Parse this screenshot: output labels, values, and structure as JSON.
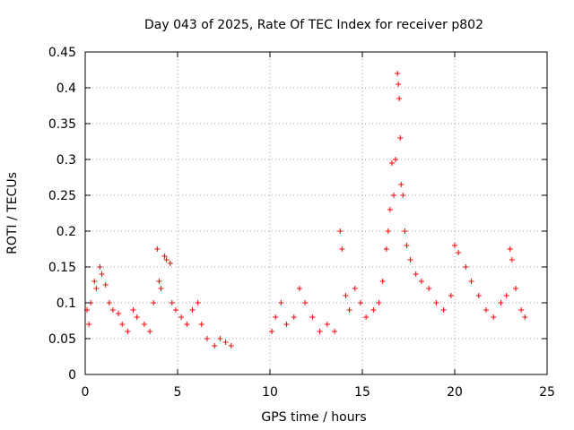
{
  "chart_data": {
    "type": "scatter",
    "title": "Day 043 of 2025, Rate Of TEC Index for receiver p802",
    "xlabel": "GPS time / hours",
    "ylabel": "ROTI / TECUs",
    "xlim": [
      0,
      25
    ],
    "ylim": [
      0,
      0.45
    ],
    "xticks": [
      0,
      5,
      10,
      15,
      20,
      25
    ],
    "xtick_labels": [
      "0",
      "5",
      "10",
      "15",
      "20",
      "25"
    ],
    "yticks": [
      0,
      0.05,
      0.1,
      0.15,
      0.2,
      0.25,
      0.3,
      0.35,
      0.4,
      0.45
    ],
    "ytick_labels": [
      "0",
      "0.05",
      "0.1",
      "0.15",
      "0.2",
      "0.25",
      "0.3",
      "0.35",
      "0.4",
      "0.45"
    ],
    "grid": true,
    "marker": "+",
    "color": "#ff0000",
    "series": [
      {
        "name": "ROTI",
        "points": [
          [
            0.1,
            0.09
          ],
          [
            0.2,
            0.07
          ],
          [
            0.3,
            0.1
          ],
          [
            0.5,
            0.13
          ],
          [
            0.6,
            0.12
          ],
          [
            0.8,
            0.15
          ],
          [
            0.9,
            0.14
          ],
          [
            1.1,
            0.125
          ],
          [
            1.3,
            0.1
          ],
          [
            1.5,
            0.09
          ],
          [
            1.8,
            0.085
          ],
          [
            2.0,
            0.07
          ],
          [
            2.3,
            0.06
          ],
          [
            2.6,
            0.09
          ],
          [
            2.8,
            0.08
          ],
          [
            3.2,
            0.07
          ],
          [
            3.5,
            0.06
          ],
          [
            3.7,
            0.1
          ],
          [
            3.9,
            0.175
          ],
          [
            4.0,
            0.13
          ],
          [
            4.1,
            0.12
          ],
          [
            4.3,
            0.165
          ],
          [
            4.4,
            0.16
          ],
          [
            4.6,
            0.155
          ],
          [
            4.7,
            0.1
          ],
          [
            4.9,
            0.09
          ],
          [
            5.2,
            0.08
          ],
          [
            5.5,
            0.07
          ],
          [
            5.8,
            0.09
          ],
          [
            6.1,
            0.1
          ],
          [
            6.3,
            0.07
          ],
          [
            6.6,
            0.05
          ],
          [
            7.0,
            0.04
          ],
          [
            7.3,
            0.05
          ],
          [
            7.6,
            0.045
          ],
          [
            7.9,
            0.04
          ],
          [
            10.1,
            0.06
          ],
          [
            10.3,
            0.08
          ],
          [
            10.6,
            0.1
          ],
          [
            10.9,
            0.07
          ],
          [
            11.3,
            0.08
          ],
          [
            11.6,
            0.12
          ],
          [
            11.9,
            0.1
          ],
          [
            12.3,
            0.08
          ],
          [
            12.7,
            0.06
          ],
          [
            13.1,
            0.07
          ],
          [
            13.5,
            0.06
          ],
          [
            13.8,
            0.2
          ],
          [
            13.9,
            0.175
          ],
          [
            14.1,
            0.11
          ],
          [
            14.3,
            0.09
          ],
          [
            14.6,
            0.12
          ],
          [
            14.9,
            0.1
          ],
          [
            15.2,
            0.08
          ],
          [
            15.6,
            0.09
          ],
          [
            15.9,
            0.1
          ],
          [
            16.1,
            0.13
          ],
          [
            16.3,
            0.175
          ],
          [
            16.4,
            0.2
          ],
          [
            16.5,
            0.23
          ],
          [
            16.6,
            0.295
          ],
          [
            16.7,
            0.25
          ],
          [
            16.8,
            0.3
          ],
          [
            16.9,
            0.42
          ],
          [
            16.95,
            0.405
          ],
          [
            17.0,
            0.385
          ],
          [
            17.05,
            0.33
          ],
          [
            17.1,
            0.265
          ],
          [
            17.2,
            0.25
          ],
          [
            17.3,
            0.2
          ],
          [
            17.4,
            0.18
          ],
          [
            17.6,
            0.16
          ],
          [
            17.9,
            0.14
          ],
          [
            18.2,
            0.13
          ],
          [
            18.6,
            0.12
          ],
          [
            19.0,
            0.1
          ],
          [
            19.4,
            0.09
          ],
          [
            19.8,
            0.11
          ],
          [
            20.0,
            0.18
          ],
          [
            20.2,
            0.17
          ],
          [
            20.6,
            0.15
          ],
          [
            20.9,
            0.13
          ],
          [
            21.3,
            0.11
          ],
          [
            21.7,
            0.09
          ],
          [
            22.1,
            0.08
          ],
          [
            22.5,
            0.1
          ],
          [
            22.8,
            0.11
          ],
          [
            23.0,
            0.175
          ],
          [
            23.1,
            0.16
          ],
          [
            23.3,
            0.12
          ],
          [
            23.6,
            0.09
          ],
          [
            23.8,
            0.08
          ]
        ]
      }
    ]
  }
}
